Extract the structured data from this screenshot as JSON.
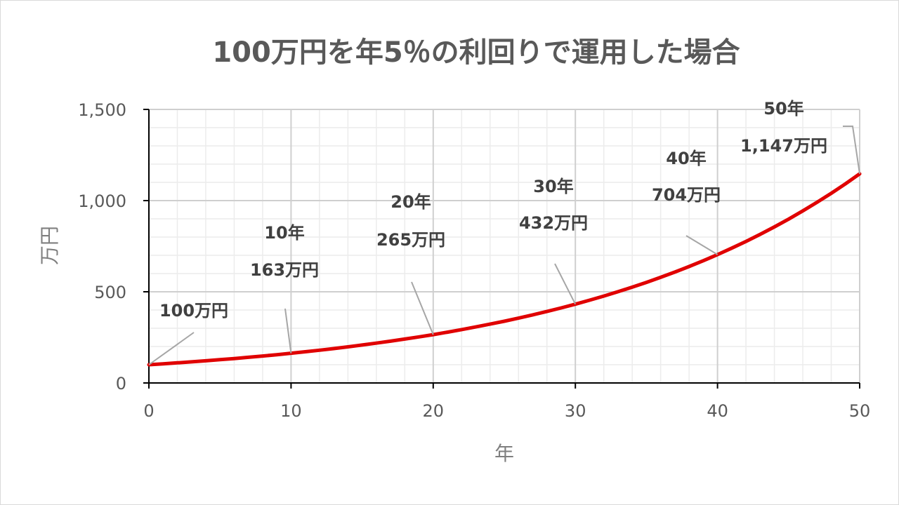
{
  "chart_data": {
    "type": "line",
    "title": "100万円を年5％の利回りで運用した場合",
    "xlabel": "年",
    "ylabel": "万円",
    "xlim": [
      0,
      50
    ],
    "ylim": [
      0,
      1500
    ],
    "x_ticks": [
      0,
      10,
      20,
      30,
      40,
      50
    ],
    "x_tick_labels": [
      "0",
      "10",
      "20",
      "30",
      "40",
      "50"
    ],
    "y_ticks": [
      0,
      500,
      1000,
      1500
    ],
    "y_tick_labels": [
      "0",
      "500",
      "1,000",
      "1,500"
    ],
    "grid": true,
    "line_color": "#e00000",
    "series": [
      {
        "x": [
          0,
          1,
          2,
          3,
          4,
          5,
          6,
          7,
          8,
          9,
          10,
          11,
          12,
          13,
          14,
          15,
          16,
          17,
          18,
          19,
          20,
          21,
          22,
          23,
          24,
          25,
          26,
          27,
          28,
          29,
          30,
          31,
          32,
          33,
          34,
          35,
          36,
          37,
          38,
          39,
          40,
          41,
          42,
          43,
          44,
          45,
          46,
          47,
          48,
          49,
          50
        ],
        "values": [
          100,
          105,
          110.3,
          115.8,
          121.6,
          127.6,
          134,
          140.7,
          147.7,
          155.1,
          163,
          171,
          179.6,
          188.6,
          198,
          207.9,
          218.3,
          229.2,
          240.7,
          252.7,
          265,
          278.6,
          292.5,
          307.2,
          322.5,
          338.6,
          355.5,
          373.3,
          392,
          411.6,
          432,
          453.8,
          476.5,
          500.3,
          525.3,
          551.6,
          579.2,
          608.1,
          638.5,
          670.5,
          704,
          739.2,
          776.2,
          815,
          855.7,
          898.5,
          943.4,
          990.6,
          1040.1,
          1092.1,
          1147
        ]
      }
    ],
    "annotations": [
      {
        "x": 0,
        "y": 100,
        "year_label": "",
        "value_label": "100万円"
      },
      {
        "x": 10,
        "y": 163,
        "year_label": "10年",
        "value_label": "163万円"
      },
      {
        "x": 20,
        "y": 265,
        "year_label": "20年",
        "value_label": "265万円"
      },
      {
        "x": 30,
        "y": 432,
        "year_label": "30年",
        "value_label": "432万円"
      },
      {
        "x": 40,
        "y": 704,
        "year_label": "40年",
        "value_label": "704万円"
      },
      {
        "x": 50,
        "y": 1147,
        "year_label": "50年",
        "value_label": "1,147万円"
      }
    ]
  }
}
